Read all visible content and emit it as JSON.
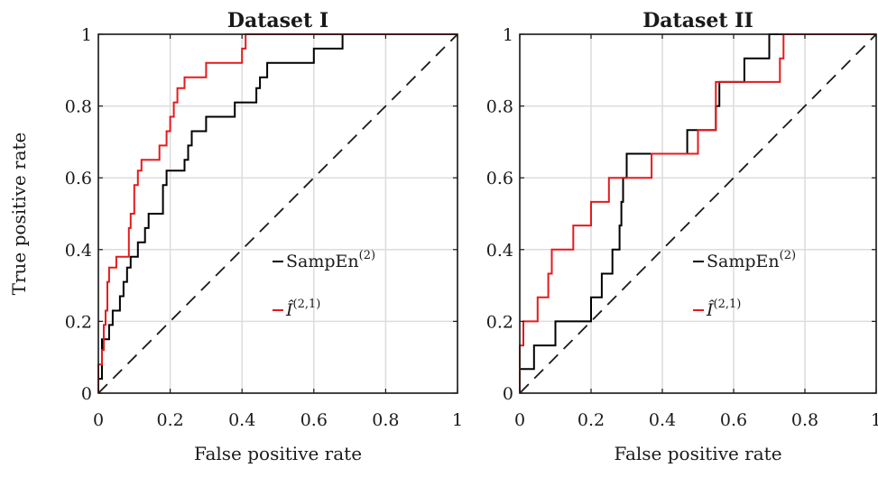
{
  "chart_data": [
    {
      "type": "line",
      "title": "Dataset I",
      "xlabel": "False positive rate",
      "ylabel": "True positive rate",
      "xlim": [
        0,
        1
      ],
      "ylim": [
        0,
        1
      ],
      "xticks": [
        "0",
        "0.2",
        "0.4",
        "0.6",
        "0.8",
        "1"
      ],
      "yticks": [
        "0",
        "0.2",
        "0.4",
        "0.6",
        "0.8",
        "1"
      ],
      "grid": true,
      "legend_position": "lower-right",
      "series": [
        {
          "name": "SampEn",
          "name_sup": "(2)",
          "color": "#000000",
          "points": [
            [
              0,
              0
            ],
            [
              0,
              0.04
            ],
            [
              0.01,
              0.04
            ],
            [
              0.01,
              0.15
            ],
            [
              0.03,
              0.15
            ],
            [
              0.03,
              0.19
            ],
            [
              0.04,
              0.19
            ],
            [
              0.04,
              0.23
            ],
            [
              0.06,
              0.23
            ],
            [
              0.06,
              0.27
            ],
            [
              0.07,
              0.27
            ],
            [
              0.07,
              0.31
            ],
            [
              0.08,
              0.31
            ],
            [
              0.08,
              0.35
            ],
            [
              0.09,
              0.35
            ],
            [
              0.09,
              0.38
            ],
            [
              0.11,
              0.38
            ],
            [
              0.11,
              0.42
            ],
            [
              0.13,
              0.42
            ],
            [
              0.13,
              0.46
            ],
            [
              0.14,
              0.46
            ],
            [
              0.14,
              0.5
            ],
            [
              0.18,
              0.5
            ],
            [
              0.18,
              0.58
            ],
            [
              0.19,
              0.58
            ],
            [
              0.19,
              0.62
            ],
            [
              0.24,
              0.62
            ],
            [
              0.24,
              0.65
            ],
            [
              0.25,
              0.65
            ],
            [
              0.25,
              0.69
            ],
            [
              0.26,
              0.69
            ],
            [
              0.26,
              0.73
            ],
            [
              0.3,
              0.73
            ],
            [
              0.3,
              0.77
            ],
            [
              0.38,
              0.77
            ],
            [
              0.38,
              0.81
            ],
            [
              0.44,
              0.81
            ],
            [
              0.44,
              0.85
            ],
            [
              0.45,
              0.85
            ],
            [
              0.45,
              0.88
            ],
            [
              0.47,
              0.88
            ],
            [
              0.47,
              0.92
            ],
            [
              0.6,
              0.92
            ],
            [
              0.6,
              0.96
            ],
            [
              0.68,
              0.96
            ],
            [
              0.68,
              1
            ],
            [
              1,
              1
            ]
          ]
        },
        {
          "name": "Î",
          "name_sup": "(2,1)",
          "color": "#e41a1c",
          "points": [
            [
              0,
              0
            ],
            [
              0,
              0.08
            ],
            [
              0.01,
              0.08
            ],
            [
              0.01,
              0.12
            ],
            [
              0.015,
              0.12
            ],
            [
              0.015,
              0.19
            ],
            [
              0.02,
              0.19
            ],
            [
              0.02,
              0.23
            ],
            [
              0.025,
              0.23
            ],
            [
              0.025,
              0.31
            ],
            [
              0.03,
              0.31
            ],
            [
              0.03,
              0.35
            ],
            [
              0.05,
              0.35
            ],
            [
              0.05,
              0.38
            ],
            [
              0.085,
              0.38
            ],
            [
              0.085,
              0.46
            ],
            [
              0.09,
              0.46
            ],
            [
              0.09,
              0.5
            ],
            [
              0.1,
              0.5
            ],
            [
              0.1,
              0.58
            ],
            [
              0.11,
              0.58
            ],
            [
              0.11,
              0.62
            ],
            [
              0.12,
              0.62
            ],
            [
              0.12,
              0.65
            ],
            [
              0.17,
              0.65
            ],
            [
              0.17,
              0.69
            ],
            [
              0.19,
              0.69
            ],
            [
              0.19,
              0.73
            ],
            [
              0.2,
              0.73
            ],
            [
              0.2,
              0.77
            ],
            [
              0.21,
              0.77
            ],
            [
              0.21,
              0.81
            ],
            [
              0.22,
              0.81
            ],
            [
              0.22,
              0.85
            ],
            [
              0.24,
              0.85
            ],
            [
              0.24,
              0.88
            ],
            [
              0.3,
              0.88
            ],
            [
              0.3,
              0.92
            ],
            [
              0.4,
              0.92
            ],
            [
              0.4,
              0.96
            ],
            [
              0.41,
              0.96
            ],
            [
              0.41,
              1
            ],
            [
              1,
              1
            ]
          ]
        }
      ]
    },
    {
      "type": "line",
      "title": "Dataset II",
      "xlabel": "False positive rate",
      "ylabel": "",
      "xlim": [
        0,
        1
      ],
      "ylim": [
        0,
        1
      ],
      "xticks": [
        "0",
        "0.2",
        "0.4",
        "0.6",
        "0.8",
        "1"
      ],
      "yticks": [
        "0",
        "0.2",
        "0.4",
        "0.6",
        "0.8",
        "1"
      ],
      "grid": true,
      "legend_position": "lower-right",
      "series": [
        {
          "name": "SampEn",
          "name_sup": "(2)",
          "color": "#000000",
          "points": [
            [
              0,
              0
            ],
            [
              0,
              0.067
            ],
            [
              0.04,
              0.067
            ],
            [
              0.04,
              0.133
            ],
            [
              0.1,
              0.133
            ],
            [
              0.1,
              0.2
            ],
            [
              0.2,
              0.2
            ],
            [
              0.2,
              0.267
            ],
            [
              0.23,
              0.267
            ],
            [
              0.23,
              0.333
            ],
            [
              0.26,
              0.333
            ],
            [
              0.26,
              0.4
            ],
            [
              0.28,
              0.4
            ],
            [
              0.28,
              0.467
            ],
            [
              0.285,
              0.467
            ],
            [
              0.285,
              0.533
            ],
            [
              0.29,
              0.533
            ],
            [
              0.29,
              0.6
            ],
            [
              0.3,
              0.6
            ],
            [
              0.3,
              0.667
            ],
            [
              0.47,
              0.667
            ],
            [
              0.47,
              0.733
            ],
            [
              0.55,
              0.733
            ],
            [
              0.55,
              0.8
            ],
            [
              0.56,
              0.8
            ],
            [
              0.56,
              0.867
            ],
            [
              0.63,
              0.867
            ],
            [
              0.63,
              0.933
            ],
            [
              0.7,
              0.933
            ],
            [
              0.7,
              1
            ],
            [
              1,
              1
            ]
          ]
        },
        {
          "name": "Î",
          "name_sup": "(2,1)",
          "color": "#e41a1c",
          "points": [
            [
              0,
              0
            ],
            [
              0,
              0.133
            ],
            [
              0.01,
              0.133
            ],
            [
              0.01,
              0.2
            ],
            [
              0.05,
              0.2
            ],
            [
              0.05,
              0.267
            ],
            [
              0.08,
              0.267
            ],
            [
              0.08,
              0.333
            ],
            [
              0.09,
              0.333
            ],
            [
              0.09,
              0.4
            ],
            [
              0.15,
              0.4
            ],
            [
              0.15,
              0.467
            ],
            [
              0.2,
              0.467
            ],
            [
              0.2,
              0.533
            ],
            [
              0.25,
              0.533
            ],
            [
              0.25,
              0.6
            ],
            [
              0.3,
              0.6
            ],
            [
              0.3,
              0.6
            ],
            [
              0.37,
              0.6
            ],
            [
              0.37,
              0.667
            ],
            [
              0.5,
              0.667
            ],
            [
              0.5,
              0.733
            ],
            [
              0.55,
              0.733
            ],
            [
              0.55,
              0.867
            ],
            [
              0.73,
              0.867
            ],
            [
              0.73,
              0.933
            ],
            [
              0.74,
              0.933
            ],
            [
              0.74,
              1
            ],
            [
              1,
              1
            ]
          ]
        }
      ]
    }
  ]
}
